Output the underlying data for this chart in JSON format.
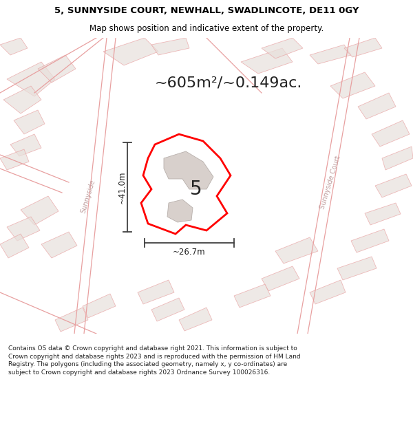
{
  "title_line1": "5, SUNNYSIDE COURT, NEWHALL, SWADLINCOTE, DE11 0GY",
  "title_line2": "Map shows position and indicative extent of the property.",
  "area_text": "~605m²/~0.149ac.",
  "width_label": "~26.7m",
  "height_label": "~41.0m",
  "plot_number": "5",
  "footer_text": "Contains OS data © Crown copyright and database right 2021. This information is subject to Crown copyright and database rights 2023 and is reproduced with the permission of HM Land Registry. The polygons (including the associated geometry, namely x, y co-ordinates) are subject to Crown copyright and database rights 2023 Ordnance Survey 100026316.",
  "bg_color": "#f5f0ee",
  "map_bg": "#f8f5f2",
  "plot_color": "#ff0000",
  "plot_fill": "none",
  "building_color": "#d8d0cc",
  "road_line_color": "#e8a0a0",
  "road_text_color": "#c0a0a0",
  "title_bg": "#ffffff",
  "footer_bg": "#ffffff",
  "dim_line_color": "#404040"
}
